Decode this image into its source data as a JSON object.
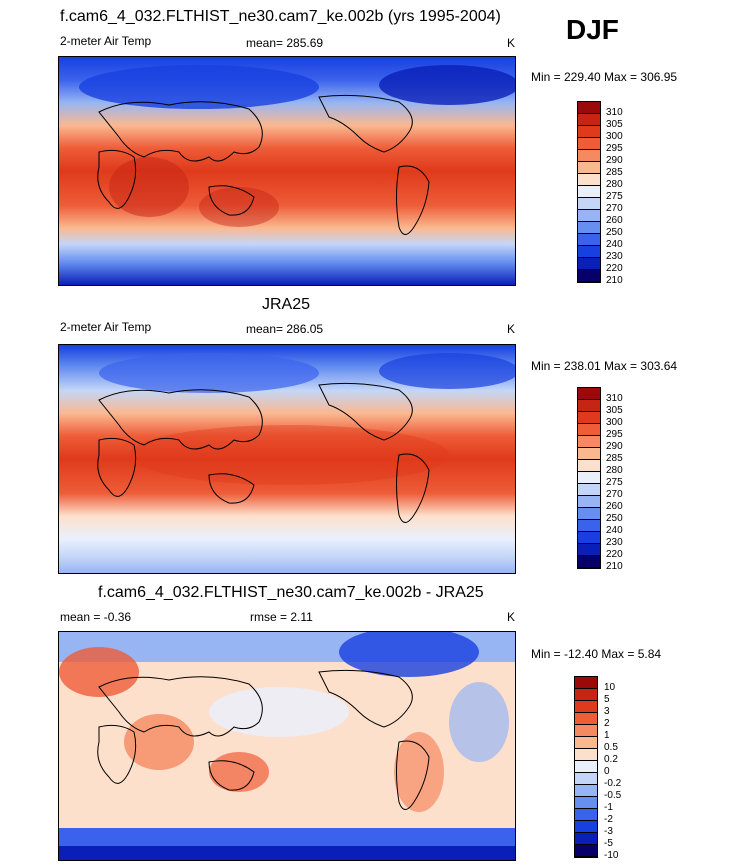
{
  "season": "DJF",
  "colors": {
    "abs_scale": [
      "#08006a",
      "#0a1fb8",
      "#1840e0",
      "#3a62ec",
      "#6690f0",
      "#97b5f3",
      "#c4d6f7",
      "#e9f0fc",
      "#fde0cb",
      "#fab890",
      "#f58a62",
      "#ee5c38",
      "#df3a1b",
      "#c62414",
      "#9b0a0a"
    ],
    "diff_scale": [
      "#08006a",
      "#0a1fb8",
      "#1840e0",
      "#3a62ec",
      "#6690f0",
      "#97b5f3",
      "#c4d6f7",
      "#e9f0fc",
      "#fde0cb",
      "#fab890",
      "#f58a62",
      "#ee5c38",
      "#df3a1b",
      "#c62414",
      "#9b0a0a"
    ]
  },
  "panels": [
    {
      "title": "f.cam6_4_032.FLTHIST_ne30.cam7_ke.002b (yrs 1995-2004)",
      "left_label": "2-meter Air Temp",
      "center_label": "mean= 285.69",
      "units": "K",
      "minmax": "Min = 229.40 Max = 306.95",
      "colorbar_labels": [
        "310",
        "305",
        "300",
        "295",
        "290",
        "285",
        "280",
        "275",
        "270",
        "260",
        "250",
        "240",
        "230",
        "220",
        "210"
      ]
    },
    {
      "title": "JRA25",
      "left_label": "2-meter Air Temp",
      "center_label": "mean= 286.05",
      "units": "K",
      "minmax": "Min = 238.01 Max = 303.64",
      "colorbar_labels": [
        "310",
        "305",
        "300",
        "295",
        "290",
        "285",
        "280",
        "275",
        "270",
        "260",
        "250",
        "240",
        "230",
        "220",
        "210"
      ]
    },
    {
      "title": "f.cam6_4_032.FLTHIST_ne30.cam7_ke.002b - JRA25",
      "left_label": "mean =  -0.36",
      "center_label": "rmse =   2.11",
      "units": "K",
      "minmax": "Min = -12.40 Max =   5.84",
      "colorbar_labels": [
        "10",
        "5",
        "3",
        "2",
        "1",
        "0.5",
        "0.2",
        "0",
        "-0.2",
        "-0.5",
        "-1",
        "-2",
        "-3",
        "-5",
        "-10"
      ]
    }
  ]
}
